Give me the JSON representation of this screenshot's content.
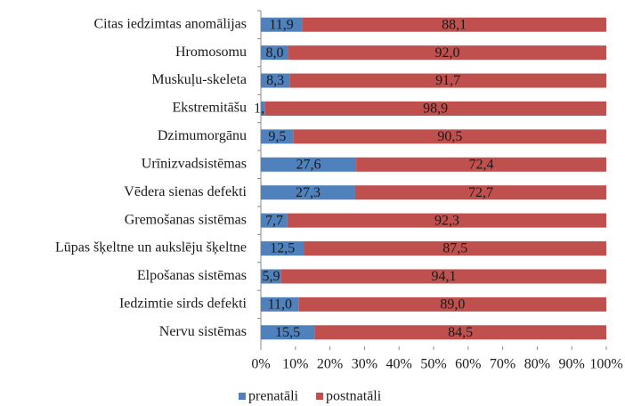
{
  "chart_data": {
    "type": "stacked-bar-horizontal",
    "categories": [
      "Citas iedzimtas anomālijas",
      "Hromosomu",
      "Muskuļu-skeleta",
      "Ekstremitāšu",
      "Dzimumorgānu",
      "Urīnizvadsistēmas",
      "Vēdera sienas defekti",
      "Gremošanas sistēmas",
      "Lūpas šķeltne un aukslēju šķeltne",
      "Elpošanas sistēmas",
      "Iedzimtie sirds defekti",
      "Nervu sistēmas"
    ],
    "series": [
      {
        "name": "prenatāli",
        "color": "#4f81bd",
        "values": [
          11.9,
          8.0,
          8.3,
          1.1,
          9.5,
          27.6,
          27.3,
          7.7,
          12.5,
          5.9,
          11.0,
          15.5
        ],
        "value_labels": [
          "11,9",
          "8,0",
          "8,3",
          "1,1",
          "9,5",
          "27,6",
          "27,3",
          "7,7",
          "12,5",
          "5,9",
          "11,0",
          "15,5"
        ]
      },
      {
        "name": "postnatāli",
        "color": "#c0504d",
        "values": [
          88.1,
          92.0,
          91.7,
          98.9,
          90.5,
          72.4,
          72.7,
          92.3,
          87.5,
          94.1,
          89.0,
          84.5
        ],
        "value_labels": [
          "88,1",
          "92,0",
          "91,7",
          "98,9",
          "90,5",
          "72,4",
          "72,7",
          "92,3",
          "87,5",
          "94,1",
          "89,0",
          "84,5"
        ]
      }
    ],
    "xlim": [
      0,
      100
    ],
    "xticks": [
      {
        "value": 0,
        "label": "0%"
      },
      {
        "value": 10,
        "label": "10%"
      },
      {
        "value": 20,
        "label": "20%"
      },
      {
        "value": 30,
        "label": "30%"
      },
      {
        "value": 40,
        "label": "40%"
      },
      {
        "value": 50,
        "label": "50%"
      },
      {
        "value": 60,
        "label": "60%"
      },
      {
        "value": 70,
        "label": "70%"
      },
      {
        "value": 80,
        "label": "80%"
      },
      {
        "value": 90,
        "label": "90%"
      },
      {
        "value": 100,
        "label": "100%"
      }
    ],
    "legend": "bottom"
  }
}
